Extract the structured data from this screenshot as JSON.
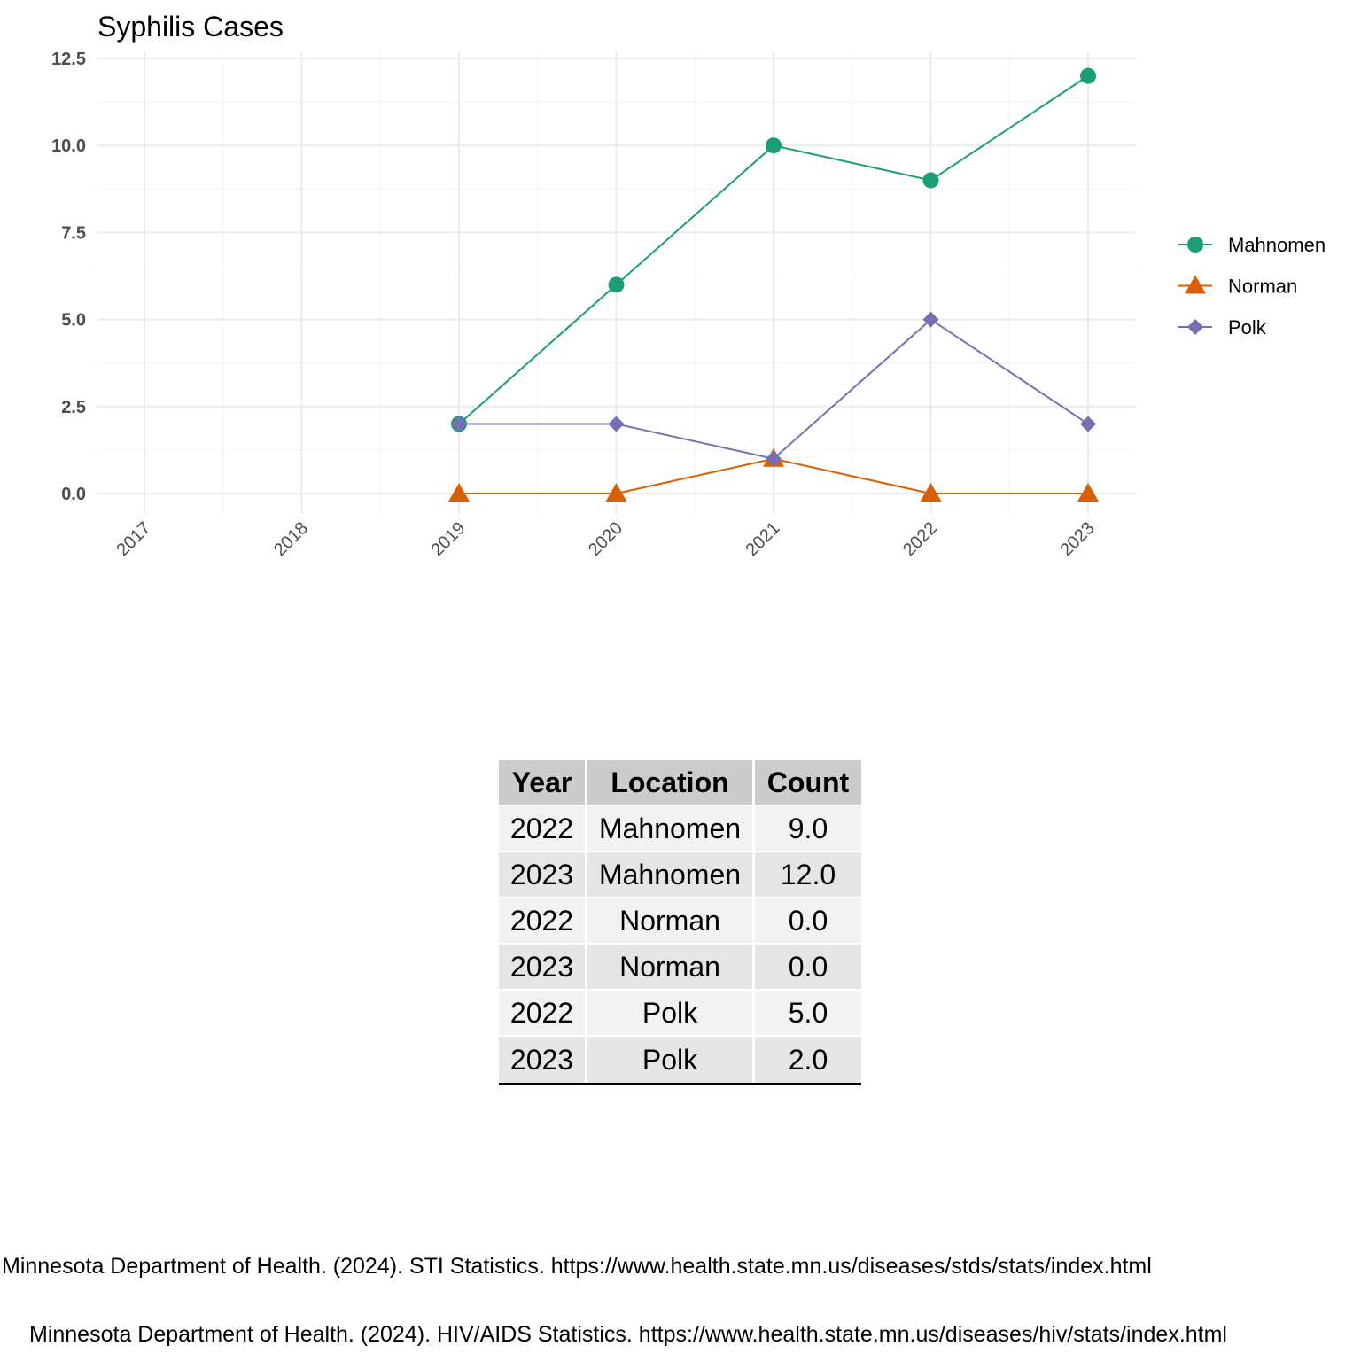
{
  "chart_data": {
    "type": "line",
    "title": "Syphilis Cases",
    "xlabel": "",
    "ylabel": "",
    "x": [
      2017,
      2018,
      2019,
      2020,
      2021,
      2022,
      2023
    ],
    "x_tick_labels": [
      "2017",
      "2018",
      "2019",
      "2020",
      "2021",
      "2022",
      "2023"
    ],
    "y_ticks": [
      0,
      2.5,
      5,
      7.5,
      10,
      12.5
    ],
    "y_tick_labels": [
      "0.0",
      "2.5",
      "5.0",
      "7.5",
      "10.0",
      "12.5"
    ],
    "xlim": [
      2017,
      2023
    ],
    "ylim": [
      0,
      12.5
    ],
    "grid": true,
    "legend_position": "right",
    "series": [
      {
        "name": "Mahnomen",
        "color": "#1b9e77",
        "marker": "circle",
        "x": [
          2019,
          2020,
          2021,
          2022,
          2023
        ],
        "values": [
          2,
          6,
          10,
          9,
          12
        ]
      },
      {
        "name": "Norman",
        "color": "#d95f02",
        "marker": "triangle",
        "x": [
          2019,
          2020,
          2021,
          2022,
          2023
        ],
        "values": [
          0,
          0,
          1,
          0,
          0
        ]
      },
      {
        "name": "Polk",
        "color": "#7570b3",
        "marker": "diamond",
        "x": [
          2019,
          2020,
          2021,
          2022,
          2023
        ],
        "values": [
          2,
          2,
          1,
          5,
          2
        ]
      }
    ]
  },
  "table": {
    "headers": [
      "Year",
      "Location",
      "Count"
    ],
    "rows": [
      [
        "2022",
        "Mahnomen",
        "9.0"
      ],
      [
        "2023",
        "Mahnomen",
        "12.0"
      ],
      [
        "2022",
        "Norman",
        "0.0"
      ],
      [
        "2023",
        "Norman",
        "0.0"
      ],
      [
        "2022",
        "Polk",
        "5.0"
      ],
      [
        "2023",
        "Polk",
        "2.0"
      ]
    ]
  },
  "citations": [
    "Minnesota Department of Health. (2024). STI Statistics. https://www.health.state.mn.us/diseases/stds/stats/index.html",
    "Minnesota Department of Health. (2024). HIV/AIDS Statistics. https://www.health.state.mn.us/diseases/hiv/stats/index.html"
  ]
}
